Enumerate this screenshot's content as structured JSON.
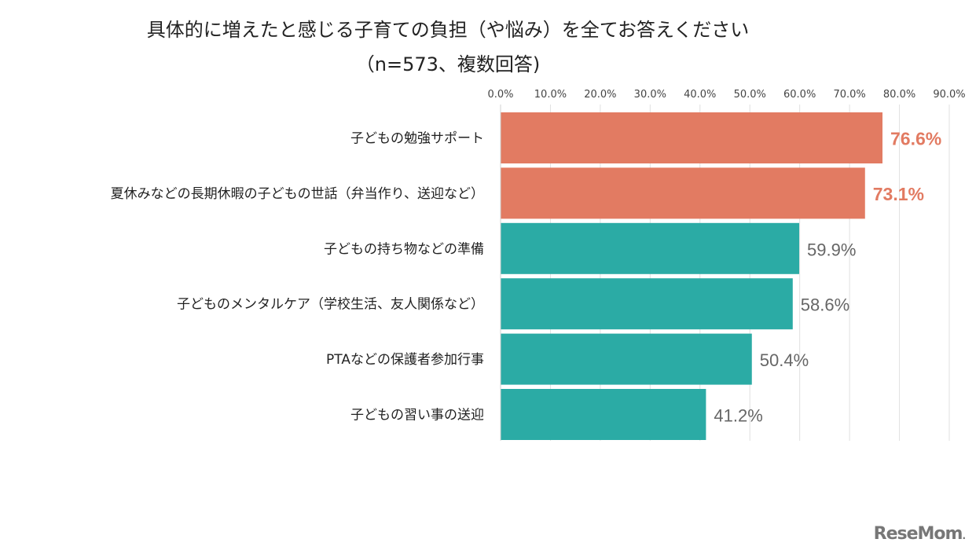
{
  "chart_data": {
    "type": "bar",
    "orientation": "horizontal",
    "title": "具体的に増えたと感じる子育ての負担（や悩み）を全てお答えください",
    "subtitle": "（n=573、複数回答)",
    "categories": [
      "子どもの勉強サポート",
      "夏休みなどの長期休暇の子どもの世話（弁当作り、送迎など）",
      "子どもの持ち物などの準備",
      "子どものメンタルケア（学校生活、友人関係など）",
      "PTAなどの保護者参加行事",
      "子どもの習い事の送迎"
    ],
    "values": [
      76.6,
      73.1,
      59.9,
      58.6,
      50.4,
      41.2
    ],
    "data_labels": [
      "76.6%",
      "73.1%",
      "59.9%",
      "58.6%",
      "50.4%",
      "41.2%"
    ],
    "highlighted": [
      true,
      true,
      false,
      false,
      false,
      false
    ],
    "xlim": [
      0,
      90
    ],
    "xticks": [
      "0.0%",
      "10.0%",
      "20.0%",
      "30.0%",
      "40.0%",
      "50.0%",
      "60.0%",
      "70.0%",
      "80.0%",
      "90.0%"
    ],
    "xaxis_position": "top",
    "grid": true,
    "colors": {
      "highlight": "#E27B62",
      "normal": "#2BABA5",
      "label_normal": "#666666"
    }
  },
  "logo": "ReseMom"
}
